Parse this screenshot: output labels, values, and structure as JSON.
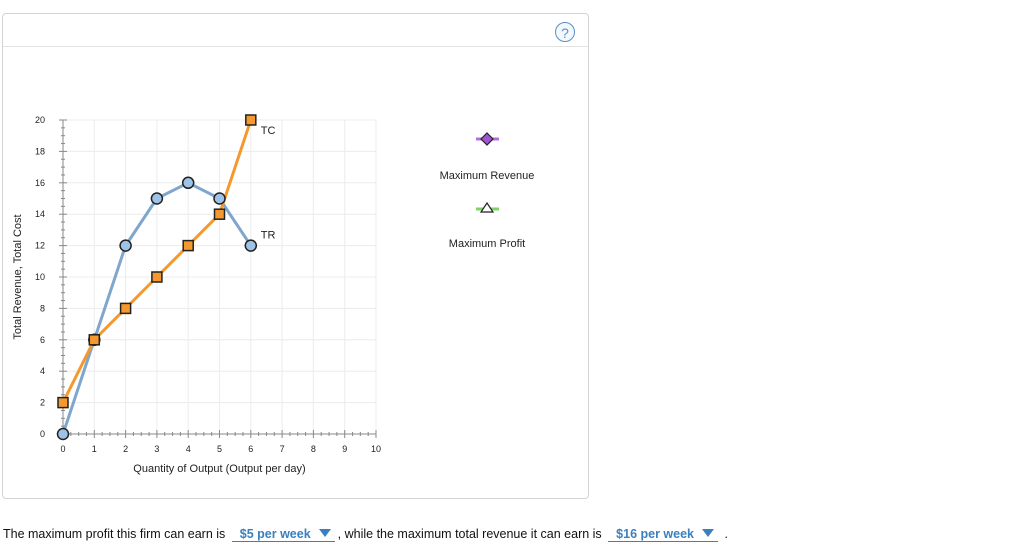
{
  "chart_data": {
    "type": "line",
    "xlabel": "Quantity of Output (Output per day)",
    "ylabel": "Total Revenue, Total Cost",
    "xlim": [
      0,
      10
    ],
    "ylim": [
      0,
      20
    ],
    "x_ticks": [
      "0",
      "1",
      "2",
      "3",
      "4",
      "5",
      "6",
      "7",
      "8",
      "9",
      "10"
    ],
    "y_ticks": [
      "0",
      "2",
      "4",
      "6",
      "8",
      "10",
      "12",
      "14",
      "16",
      "18",
      "20"
    ],
    "series": [
      {
        "name": "TC",
        "color": "#f5982e",
        "marker": "square",
        "x": [
          0,
          1,
          2,
          3,
          4,
          5,
          6
        ],
        "y": [
          2,
          6,
          8,
          10,
          12,
          14,
          20
        ]
      },
      {
        "name": "TR",
        "color": "#7fa6cc",
        "marker": "circle",
        "x": [
          0,
          1,
          2,
          3,
          4,
          5,
          6
        ],
        "y": [
          0,
          6,
          12,
          15,
          16,
          15,
          12
        ]
      }
    ],
    "legend": [
      {
        "label": "Maximum Revenue",
        "marker": "diamond",
        "line_color": "#b36ee0",
        "fill": "#a055d6"
      },
      {
        "label": "Maximum Profit",
        "marker": "triangle",
        "line_color": "#7ed36b",
        "fill": "#ffffff"
      }
    ]
  },
  "help_label": "?",
  "question": {
    "part1": "The maximum profit this firm can earn is",
    "answer1": "$5 per week",
    "part2": ", while the maximum total revenue it can earn is",
    "answer2": "$16 per week",
    "end": "."
  }
}
